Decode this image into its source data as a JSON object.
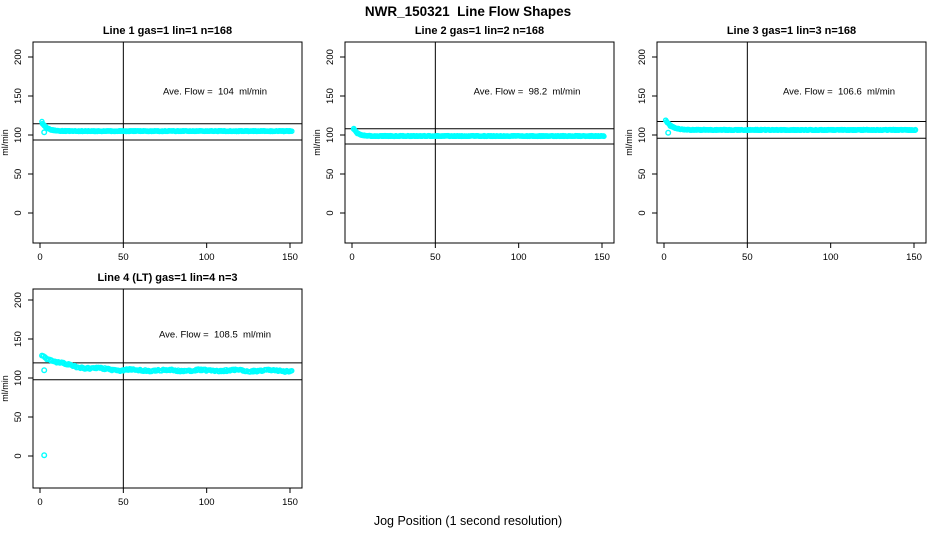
{
  "page": {
    "title": "NWR_150321  Line Flow Shapes",
    "xlabel": "Jog Position (1 second resolution)"
  },
  "chart_data": {
    "type": "scatter",
    "title": "NWR_150321  Line Flow Shapes",
    "xlabel": "Jog Position (1 second resolution)",
    "ylabel": "ml/min",
    "x_ticks": [
      0,
      50,
      100,
      150
    ],
    "y_ticks": [
      0,
      50,
      100,
      150,
      200
    ],
    "x_data_range": [
      1,
      151
    ],
    "grid": false,
    "legend": "none",
    "point_color": "#00ffff",
    "line_color": "#000000",
    "marker": "open-circle",
    "vline_x": 50,
    "ref_lines_rule": "average flow plus/minus 10%",
    "panels": [
      {
        "title": "Line 1 gas=1 lin=1 n=168",
        "gas": 1,
        "lin": 1,
        "n": 168,
        "annotation": "Ave. Flow =  104  ml/min",
        "ave_flow": 104,
        "ref_upper": 114.4,
        "ref_lower": 93.6,
        "series_shape": {
          "start_y": 117,
          "settle_y": 105,
          "decay_tau": 3,
          "noise": 0.5,
          "wiggle": 0
        },
        "outliers": [
          [
            2.5,
            103.5
          ]
        ],
        "grid_pos": [
          0,
          0
        ]
      },
      {
        "title": "Line 2 gas=1 lin=2 n=168",
        "gas": 1,
        "lin": 2,
        "n": 168,
        "annotation": "Ave. Flow =  98.2  ml/min",
        "ave_flow": 98.2,
        "ref_upper": 108.0,
        "ref_lower": 88.4,
        "series_shape": {
          "start_y": 108,
          "settle_y": 98.7,
          "decay_tau": 2.5,
          "noise": 0.5,
          "wiggle": 0
        },
        "outliers": [],
        "grid_pos": [
          0,
          1
        ]
      },
      {
        "title": "Line 3 gas=1 lin=3 n=168",
        "gas": 1,
        "lin": 3,
        "n": 168,
        "annotation": "Ave. Flow =  106.6  ml/min",
        "ave_flow": 106.6,
        "ref_upper": 117.3,
        "ref_lower": 95.9,
        "series_shape": {
          "start_y": 119,
          "settle_y": 106.5,
          "decay_tau": 3.5,
          "noise": 0.5,
          "wiggle": 0
        },
        "outliers": [
          [
            2.5,
            103
          ]
        ],
        "grid_pos": [
          0,
          2
        ]
      },
      {
        "title": "Line 4 (LT) gas=1 lin=4 n=3",
        "gas": 1,
        "lin": 4,
        "n": 3,
        "annotation": "Ave. Flow =  108.5  ml/min",
        "ave_flow": 108.5,
        "ref_upper": 119.4,
        "ref_lower": 97.7,
        "series_shape": {
          "start_y": 129,
          "settle_y": 109.5,
          "decay_tau": 16,
          "noise": 1.2,
          "wiggle": 0.9
        },
        "outliers": [
          [
            2.5,
            110
          ],
          [
            2.5,
            1
          ]
        ],
        "grid_pos": [
          1,
          0
        ]
      }
    ]
  }
}
